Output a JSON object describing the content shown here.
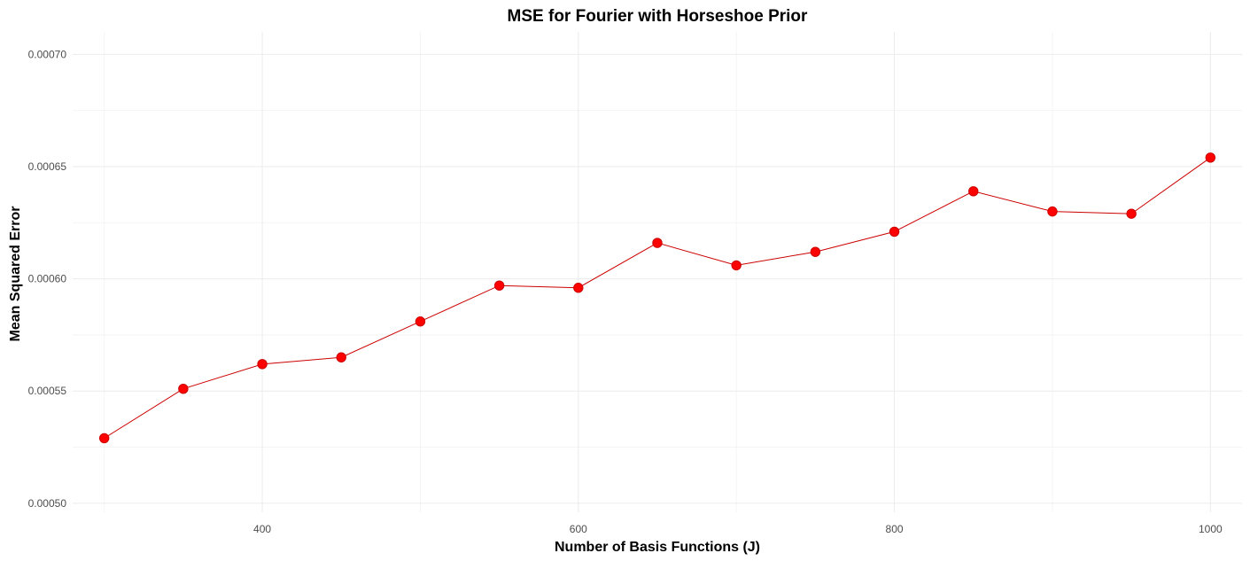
{
  "chart_data": {
    "type": "line",
    "title": "MSE for Fourier with Horseshoe Prior",
    "xlabel": "Number of Basis Functions (J)",
    "ylabel": "Mean Squared Error",
    "x": [
      300,
      350,
      400,
      450,
      500,
      550,
      600,
      650,
      700,
      750,
      800,
      850,
      900,
      950,
      1000
    ],
    "series": [
      {
        "values": [
          0.000529,
          0.000551,
          0.000562,
          0.000565,
          0.000581,
          0.000597,
          0.000596,
          0.000616,
          0.000606,
          0.000612,
          0.000621,
          0.000639,
          0.00063,
          0.000629,
          0.000654
        ],
        "color": "#cc0000",
        "marker_color": "#ff0000"
      }
    ],
    "xlim": [
      280,
      1020
    ],
    "ylim": [
      0.000496,
      0.00071
    ],
    "xticks": [
      400,
      600,
      800,
      1000
    ],
    "xtick_labels": [
      "400",
      "600",
      "800",
      "1000"
    ],
    "yticks": [
      0.0005,
      0.00055,
      0.0006,
      0.00065,
      0.0007
    ],
    "ytick_labels": [
      "0.00050",
      "0.00055",
      "0.00060",
      "0.00065",
      "0.00070"
    ],
    "grid": true,
    "legend": "none"
  }
}
